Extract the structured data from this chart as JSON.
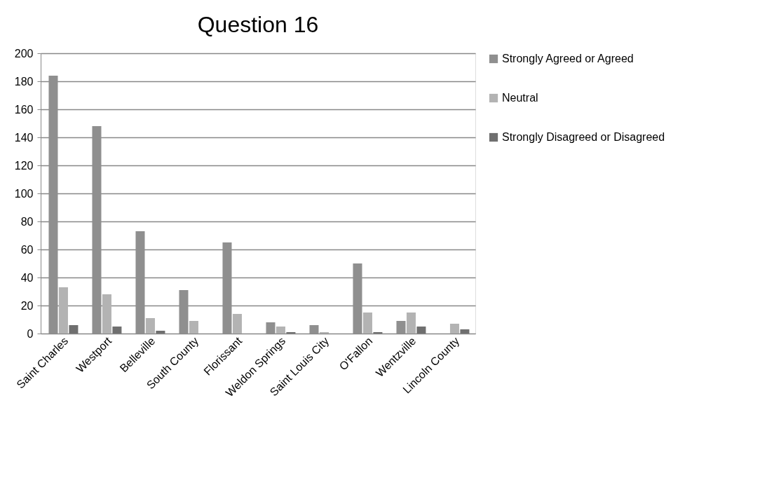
{
  "chart_data": {
    "type": "bar",
    "title": "Question 16",
    "categories": [
      "Saint Charles",
      "Westport",
      "Belleville",
      "South County",
      "Florissant",
      "Weldon Springs",
      "Saint Louis City",
      "O'Fallon",
      "Wentzville",
      "Lincoln County"
    ],
    "series": [
      {
        "name": "Strongly Agreed or Agreed",
        "color": "#8f8f8f",
        "values": [
          184,
          148,
          73,
          31,
          65,
          8,
          6,
          50,
          9,
          0
        ]
      },
      {
        "name": "Neutral",
        "color": "#b3b3b3",
        "values": [
          33,
          28,
          11,
          9,
          14,
          5,
          1,
          15,
          15,
          7
        ]
      },
      {
        "name": "Strongly Disagreed or Disagreed",
        "color": "#6f6f6f",
        "values": [
          6,
          5,
          2,
          0,
          0,
          1,
          0,
          1,
          5,
          3
        ]
      }
    ],
    "ylim": [
      0,
      200
    ],
    "yticks": [
      0,
      20,
      40,
      60,
      80,
      100,
      120,
      140,
      160,
      180,
      200
    ],
    "grid": "y",
    "legend": "right"
  }
}
